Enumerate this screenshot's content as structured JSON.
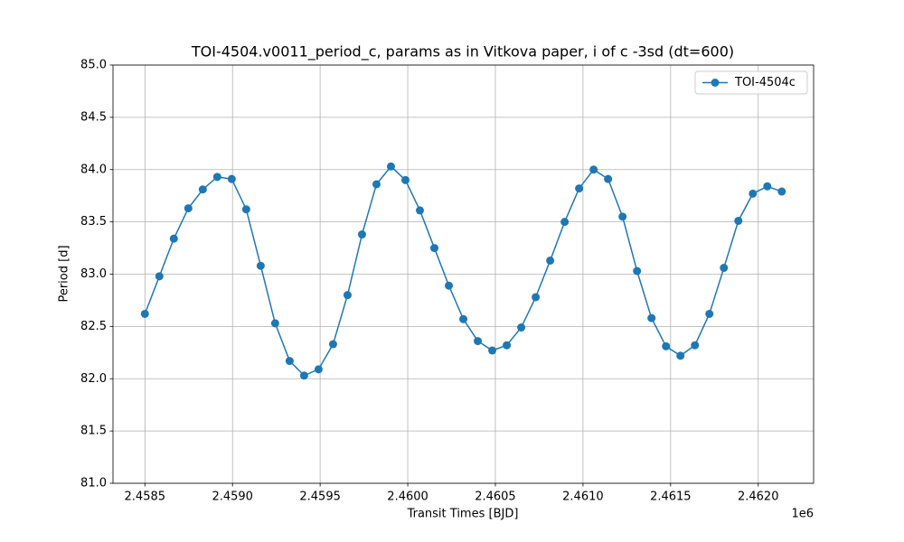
{
  "chart_data": {
    "type": "line",
    "title": "TOI-4504.v0011_period_c, params as in Vitkova paper, i of c -3sd (dt=600)",
    "x_label": "Transit Times [BJD]",
    "y_label": "Period [d]",
    "x_offset_label": "1e6",
    "x": [
      2458500,
      2458582.6,
      2458665.2,
      2458747.8,
      2458830.4,
      2458913,
      2458995.6,
      2459078.2,
      2459160.8,
      2459243.4,
      2459326,
      2459408.6,
      2459491.2,
      2459573.8,
      2459656.4,
      2459739,
      2459821.6,
      2459904.2,
      2459986.8,
      2460069.4,
      2460152,
      2460234.6,
      2460317.2,
      2460399.8,
      2460482.4,
      2460565,
      2460647.6,
      2460730.2,
      2460812.8,
      2460895.4,
      2460978,
      2461060.6,
      2461143.2,
      2461225.8,
      2461308.4,
      2461391,
      2461473.6,
      2461556.2,
      2461638.8,
      2461721.4,
      2461804,
      2461886.6,
      2461969.2,
      2462051.8,
      2462134.4
    ],
    "series": [
      {
        "name": "TOI-4504c",
        "color": "#1f77b4",
        "values": [
          82.62,
          82.98,
          83.34,
          83.63,
          83.81,
          83.93,
          83.91,
          83.62,
          83.08,
          82.53,
          82.17,
          82.03,
          82.09,
          82.33,
          82.8,
          83.38,
          83.86,
          84.03,
          83.9,
          83.61,
          83.25,
          82.89,
          82.57,
          82.36,
          82.27,
          82.32,
          82.49,
          82.78,
          83.13,
          83.5,
          83.82,
          84.0,
          83.91,
          83.55,
          83.03,
          82.58,
          82.31,
          82.22,
          82.32,
          82.62,
          83.06,
          83.51,
          83.77,
          83.84,
          83.79
        ]
      }
    ],
    "xlim": [
      2458318,
      2462316
    ],
    "ylim": [
      81,
      85
    ],
    "xticks": [
      {
        "value": 2458500,
        "label": "2.4585"
      },
      {
        "value": 2459000,
        "label": "2.4590"
      },
      {
        "value": 2459500,
        "label": "2.4595"
      },
      {
        "value": 2460000,
        "label": "2.4600"
      },
      {
        "value": 2460500,
        "label": "2.4605"
      },
      {
        "value": 2461000,
        "label": "2.4610"
      },
      {
        "value": 2461500,
        "label": "2.4615"
      },
      {
        "value": 2462000,
        "label": "2.4620"
      }
    ],
    "yticks": [
      {
        "value": 81,
        "label": "81.0"
      },
      81.5,
      {
        "value": 82,
        "label": "82.0"
      },
      82.5,
      {
        "value": 83,
        "label": "83.0"
      },
      83.5,
      {
        "value": 84,
        "label": "84.0"
      },
      84.5,
      {
        "value": 85,
        "label": "85.0"
      }
    ],
    "grid": true,
    "legend": "upper right",
    "markers": true
  }
}
